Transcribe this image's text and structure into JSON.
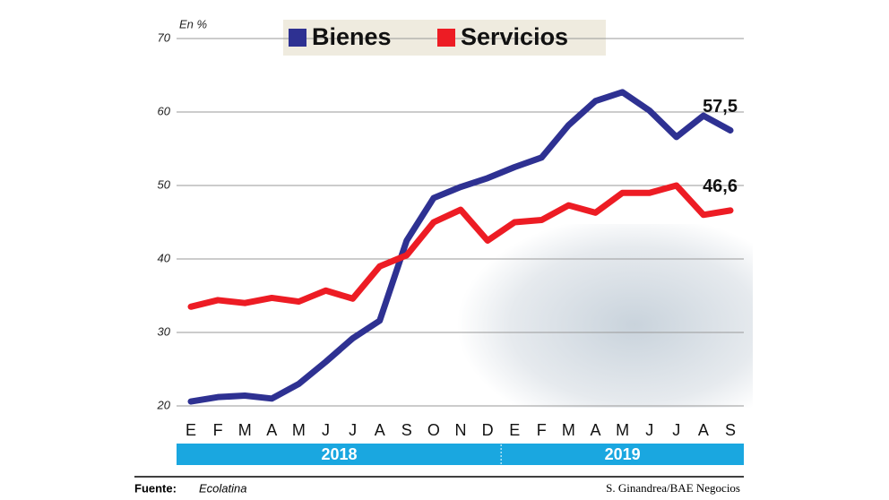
{
  "chart_data": {
    "type": "line",
    "unit_label": "En %",
    "categories": [
      "E",
      "F",
      "M",
      "A",
      "M",
      "J",
      "J",
      "A",
      "S",
      "O",
      "N",
      "D",
      "E",
      "F",
      "M",
      "A",
      "M",
      "J",
      "J",
      "A",
      "S"
    ],
    "groups": [
      {
        "label": "2018",
        "start": 0,
        "end": 11
      },
      {
        "label": "2019",
        "start": 12,
        "end": 20
      }
    ],
    "series": [
      {
        "name": "Bienes",
        "color": "#2e3192",
        "values": [
          20.6,
          21.2,
          21.4,
          21.0,
          23.0,
          26.0,
          29.2,
          31.6,
          42.5,
          48.3,
          49.8,
          51.0,
          52.5,
          53.8,
          58.2,
          61.5,
          62.7,
          60.2,
          56.6,
          59.5,
          57.5
        ],
        "value_labels": [
          null,
          null,
          null,
          null,
          null,
          null,
          null,
          null,
          null,
          null,
          null,
          null,
          null,
          null,
          null,
          null,
          null,
          null,
          null,
          null,
          "57,5"
        ]
      },
      {
        "name": "Servicios",
        "color": "#ed1c24",
        "values": [
          33.5,
          34.4,
          34.0,
          34.7,
          34.2,
          35.7,
          34.6,
          39.0,
          40.5,
          45.0,
          46.7,
          42.5,
          45.0,
          45.3,
          47.3,
          46.3,
          49.0,
          49.0,
          50.0,
          46.0,
          46.6
        ],
        "value_labels": [
          null,
          null,
          null,
          null,
          null,
          null,
          null,
          null,
          null,
          null,
          null,
          null,
          null,
          null,
          null,
          null,
          null,
          null,
          null,
          null,
          "46,6"
        ]
      }
    ],
    "ylim": [
      20,
      70
    ],
    "yticks": [
      20,
      30,
      40,
      50,
      60,
      70
    ],
    "grid": true,
    "source_label": "Fuente:",
    "source": "Ecolatina",
    "credit": "S. Ginandrea/BAE Negocios"
  }
}
